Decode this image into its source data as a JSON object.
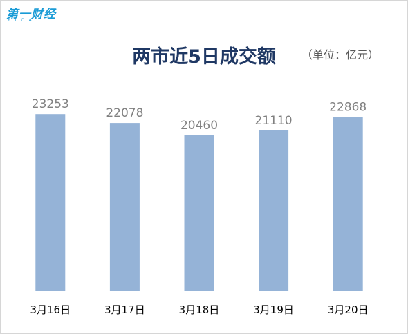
{
  "logo": {
    "cn": "第一财经",
    "en": "YICAI"
  },
  "unit_label": "（单位：亿元）",
  "colors": {
    "bar": "#95b3d7",
    "value_label": "#808080",
    "axis_label": "#000000",
    "title": "#1f3864",
    "logo": "#1a9bd6",
    "axis_line": "#bfbfbf"
  },
  "chart_data": {
    "type": "bar",
    "title": "两市近5日成交额",
    "xlabel": "",
    "ylabel": "",
    "categories": [
      "3月16日",
      "3月17日",
      "3月18日",
      "3月19日",
      "3月20日"
    ],
    "values": [
      23253,
      22078,
      20460,
      21110,
      22868
    ],
    "ylim": [
      0,
      25000
    ],
    "grid": false,
    "legend": "none",
    "data_labels": true
  }
}
